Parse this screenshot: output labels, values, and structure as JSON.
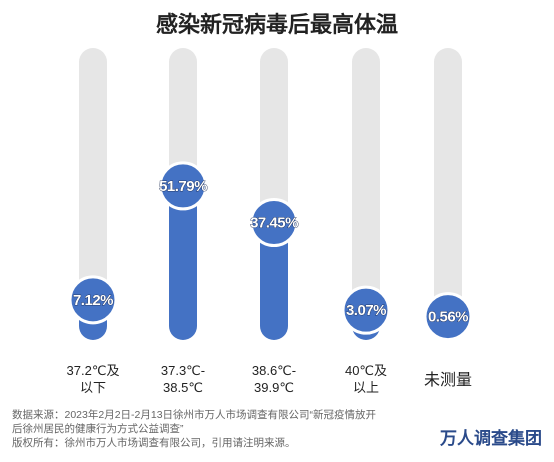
{
  "chart_data": {
    "type": "thermometer",
    "title": "感染新冠病毒后最高体温",
    "categories": [
      "37.2℃及\n以下",
      "37.3℃-\n38.5℃",
      "38.6℃-\n39.9℃",
      "40℃及\n以上",
      "未测量"
    ],
    "values": [
      7.12,
      51.79,
      37.45,
      3.07,
      0.56
    ],
    "value_labels": [
      "7.12%",
      "51.79%",
      "37.45%",
      "3.07%",
      "0.56%"
    ],
    "color": "#4472c4",
    "track_color": "#e6e6e6"
  },
  "footer": {
    "source": "数据来源：2023年2月2日-2月13日徐州市万人市场调查有限公司“新冠疫情放开\n后徐州居民的健康行为方式公益调查”",
    "copyright": "版权所有：徐州市万人市场调查有限公司，引用请注明来源。",
    "logo": "万人调查集团"
  }
}
